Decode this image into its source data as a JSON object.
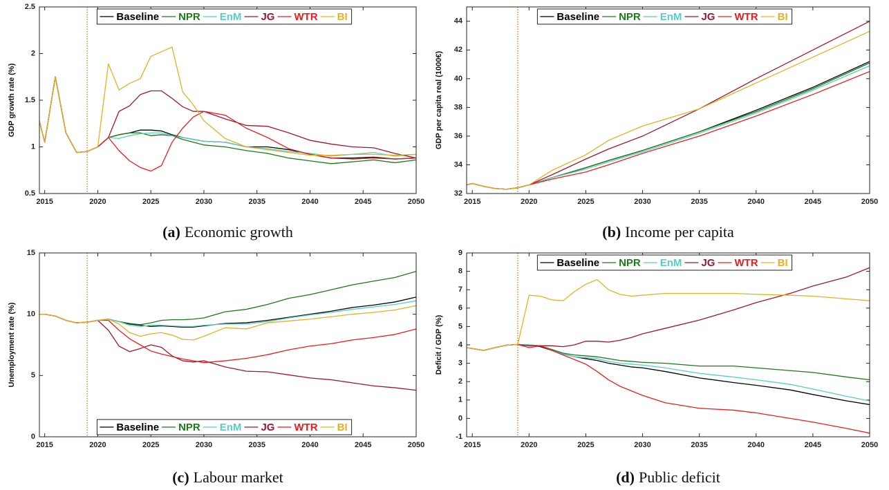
{
  "chart_data": [
    {
      "type": "line",
      "caption_label": "(a)",
      "caption": "Economic growth",
      "y_label": "GDP growth rate (%)",
      "x": [
        2014,
        2015,
        2016,
        2017,
        2018,
        2019,
        2020,
        2021,
        2022,
        2023,
        2024,
        2025,
        2026,
        2027,
        2028,
        2029,
        2030,
        2032,
        2034,
        2036,
        2038,
        2040,
        2042,
        2044,
        2046,
        2048,
        2050
      ],
      "xlim": [
        2014.5,
        2050
      ],
      "xticks": [
        2015,
        2020,
        2025,
        2030,
        2035,
        2040,
        2045,
        2050
      ],
      "ylim": [
        0.5,
        2.5
      ],
      "yticks": [
        0.5,
        1,
        1.5,
        2,
        2.5
      ],
      "vline": 2019,
      "vline_color": "#d2691e",
      "legend": "upper center",
      "series": [
        {
          "name": "Baseline",
          "color": "#000000",
          "values": [
            1.5,
            1.05,
            1.75,
            1.15,
            0.94,
            0.95,
            1.0,
            1.1,
            1.13,
            1.15,
            1.18,
            1.18,
            1.17,
            1.13,
            1.1,
            1.08,
            1.06,
            1.05,
            1.0,
            1.0,
            0.97,
            0.92,
            0.88,
            0.88,
            0.89,
            0.87,
            0.88
          ]
        },
        {
          "name": "NPR",
          "color": "#1a7a1a",
          "values": [
            1.5,
            1.05,
            1.75,
            1.15,
            0.94,
            0.95,
            1.0,
            1.1,
            1.13,
            1.15,
            1.15,
            1.12,
            1.13,
            1.12,
            1.08,
            1.05,
            1.02,
            1.0,
            0.96,
            0.93,
            0.88,
            0.85,
            0.82,
            0.84,
            0.86,
            0.83,
            0.86
          ]
        },
        {
          "name": "EnM",
          "color": "#55cfc3",
          "values": [
            1.5,
            1.05,
            1.75,
            1.15,
            0.94,
            0.95,
            1.0,
            1.1,
            1.09,
            1.12,
            1.14,
            1.15,
            1.15,
            1.12,
            1.1,
            1.08,
            1.06,
            1.05,
            1.0,
            0.98,
            0.95,
            0.93,
            0.9,
            0.92,
            0.94,
            0.9,
            0.92
          ]
        },
        {
          "name": "JG",
          "color": "#a01530",
          "values": [
            1.5,
            1.05,
            1.75,
            1.15,
            0.94,
            0.95,
            1.0,
            1.1,
            1.38,
            1.44,
            1.56,
            1.6,
            1.6,
            1.52,
            1.43,
            1.38,
            1.38,
            1.3,
            1.23,
            1.22,
            1.15,
            1.07,
            1.03,
            1.0,
            0.99,
            0.93,
            0.88
          ]
        },
        {
          "name": "WTR",
          "color": "#ee1c1c",
          "values": [
            1.5,
            1.05,
            1.75,
            1.15,
            0.94,
            0.95,
            1.0,
            1.1,
            0.96,
            0.85,
            0.78,
            0.74,
            0.8,
            1.05,
            1.2,
            1.32,
            1.38,
            1.34,
            1.2,
            1.1,
            0.98,
            0.92,
            0.88,
            0.87,
            0.88,
            0.87,
            0.88
          ]
        },
        {
          "name": "BI",
          "color": "#e6b022",
          "values": [
            1.5,
            1.05,
            1.75,
            1.15,
            0.94,
            0.95,
            1.0,
            1.89,
            1.61,
            1.68,
            1.73,
            1.97,
            2.02,
            2.07,
            1.59,
            1.45,
            1.28,
            1.09,
            1.0,
            0.97,
            0.94,
            0.91,
            0.91,
            0.92,
            0.92,
            0.91,
            0.92
          ]
        }
      ]
    },
    {
      "type": "line",
      "caption_label": "(b)",
      "caption": "Income per capita",
      "y_label": "GDP per capita real (1000€)",
      "x": [
        2014,
        2015,
        2016,
        2017,
        2018,
        2019,
        2020,
        2022,
        2025,
        2027,
        2030,
        2035,
        2040,
        2045,
        2050
      ],
      "xlim": [
        2014.5,
        2050
      ],
      "xticks": [
        2015,
        2020,
        2025,
        2030,
        2035,
        2040,
        2045,
        2050
      ],
      "ylim": [
        32,
        45
      ],
      "yticks": [
        32,
        34,
        36,
        38,
        40,
        42,
        44
      ],
      "vline": 2019,
      "vline_color": "#d2691e",
      "legend": "upper center",
      "series": [
        {
          "name": "Baseline",
          "color": "#000000",
          "values": [
            32.5,
            32.7,
            32.5,
            32.35,
            32.3,
            32.4,
            32.6,
            33.1,
            33.8,
            34.3,
            35.0,
            36.3,
            37.8,
            39.4,
            41.2
          ]
        },
        {
          "name": "NPR",
          "color": "#1a7a1a",
          "values": [
            32.5,
            32.7,
            32.5,
            32.35,
            32.3,
            32.4,
            32.6,
            33.1,
            33.8,
            34.3,
            35.0,
            36.3,
            37.7,
            39.3,
            41.1
          ]
        },
        {
          "name": "EnM",
          "color": "#55cfc3",
          "values": [
            32.5,
            32.7,
            32.5,
            32.35,
            32.3,
            32.4,
            32.6,
            33.1,
            33.7,
            34.2,
            34.9,
            36.2,
            37.6,
            39.2,
            40.9
          ]
        },
        {
          "name": "JG",
          "color": "#a01530",
          "values": [
            32.5,
            32.7,
            32.5,
            32.35,
            32.3,
            32.4,
            32.6,
            33.3,
            34.4,
            35.1,
            36.0,
            37.9,
            40.0,
            42.0,
            44.0
          ]
        },
        {
          "name": "WTR",
          "color": "#ee1c1c",
          "values": [
            32.5,
            32.7,
            32.5,
            32.35,
            32.3,
            32.4,
            32.6,
            33.0,
            33.5,
            34.0,
            34.8,
            36.0,
            37.4,
            38.9,
            40.5
          ]
        },
        {
          "name": "BI",
          "color": "#e6b022",
          "values": [
            32.5,
            32.7,
            32.5,
            32.35,
            32.3,
            32.4,
            32.6,
            33.6,
            34.7,
            35.7,
            36.7,
            37.9,
            39.7,
            41.5,
            43.3
          ]
        }
      ]
    },
    {
      "type": "line",
      "caption_label": "(c)",
      "caption": "Labour market",
      "y_label": "Unemployment rate (%)",
      "x": [
        2014,
        2015,
        2016,
        2017,
        2018,
        2019,
        2020,
        2021,
        2022,
        2023,
        2024,
        2025,
        2026,
        2027,
        2028,
        2029,
        2030,
        2032,
        2034,
        2036,
        2038,
        2040,
        2042,
        2044,
        2046,
        2048,
        2050
      ],
      "xlim": [
        2014.5,
        2050
      ],
      "xticks": [
        2015,
        2020,
        2025,
        2030,
        2035,
        2040,
        2045,
        2050
      ],
      "ylim": [
        0,
        15
      ],
      "yticks": [
        0,
        5,
        10,
        15
      ],
      "vline": 2019,
      "vline_color": "#d2691e",
      "legend": "lower center",
      "series": [
        {
          "name": "Baseline",
          "color": "#000000",
          "values": [
            10,
            10,
            9.85,
            9.5,
            9.3,
            9.35,
            9.5,
            9.6,
            9.4,
            9.2,
            9.1,
            9.0,
            9.05,
            9.0,
            8.95,
            8.95,
            9.05,
            9.25,
            9.3,
            9.5,
            9.75,
            10.0,
            10.25,
            10.55,
            10.75,
            11.0,
            11.4
          ]
        },
        {
          "name": "NPR",
          "color": "#1a7a1a",
          "values": [
            10,
            10,
            9.85,
            9.5,
            9.3,
            9.35,
            9.5,
            9.6,
            9.4,
            9.25,
            9.15,
            9.3,
            9.5,
            9.55,
            9.55,
            9.6,
            9.7,
            10.2,
            10.4,
            10.8,
            11.3,
            11.6,
            12.0,
            12.4,
            12.7,
            13.0,
            13.5
          ]
        },
        {
          "name": "EnM",
          "color": "#55cfc3",
          "values": [
            10,
            10,
            9.85,
            9.5,
            9.3,
            9.35,
            9.5,
            9.6,
            9.4,
            9.1,
            9.0,
            9.1,
            9.1,
            9.05,
            9.0,
            9.0,
            9.1,
            9.2,
            9.2,
            9.4,
            9.7,
            9.95,
            10.15,
            10.4,
            10.6,
            10.8,
            11.1
          ]
        },
        {
          "name": "JG",
          "color": "#a01530",
          "values": [
            10,
            10,
            9.85,
            9.5,
            9.3,
            9.35,
            9.5,
            8.7,
            7.4,
            6.95,
            7.2,
            7.5,
            7.3,
            6.6,
            6.2,
            6.1,
            6.2,
            5.7,
            5.35,
            5.3,
            5.05,
            4.8,
            4.65,
            4.4,
            4.15,
            4.0,
            3.8
          ]
        },
        {
          "name": "WTR",
          "color": "#ee1c1c",
          "values": [
            10,
            10,
            9.85,
            9.5,
            9.3,
            9.35,
            9.5,
            9.5,
            8.7,
            8.0,
            7.5,
            7.0,
            6.75,
            6.55,
            6.35,
            6.2,
            6.05,
            6.2,
            6.4,
            6.7,
            7.1,
            7.4,
            7.6,
            7.9,
            8.1,
            8.35,
            8.8
          ]
        },
        {
          "name": "BI",
          "color": "#e6b022",
          "values": [
            10,
            10,
            9.85,
            9.5,
            9.3,
            9.35,
            9.5,
            9.6,
            9.2,
            8.5,
            8.2,
            8.4,
            8.5,
            8.3,
            7.95,
            7.9,
            8.2,
            8.9,
            8.8,
            9.3,
            9.45,
            9.6,
            9.8,
            10.0,
            10.15,
            10.35,
            10.7
          ]
        }
      ]
    },
    {
      "type": "line",
      "caption_label": "(d)",
      "caption": "Public deficit",
      "y_label": "Deficit / GDP (%)",
      "x": [
        2014,
        2015,
        2016,
        2017,
        2018,
        2019,
        2020,
        2021,
        2022,
        2023,
        2024,
        2025,
        2026,
        2027,
        2028,
        2029,
        2030,
        2032,
        2035,
        2038,
        2040,
        2043,
        2045,
        2048,
        2050
      ],
      "xlim": [
        2014.5,
        2050
      ],
      "xticks": [
        2015,
        2020,
        2025,
        2030,
        2035,
        2040,
        2045,
        2050
      ],
      "ylim": [
        -1,
        9
      ],
      "yticks": [
        -1,
        0,
        1,
        2,
        3,
        4,
        5,
        6,
        7,
        8,
        9
      ],
      "vline": 2019,
      "vline_color": "#d2691e",
      "legend": "upper center",
      "series": [
        {
          "name": "Baseline",
          "color": "#000000",
          "values": [
            3.9,
            3.8,
            3.7,
            3.85,
            3.98,
            4.02,
            4.0,
            3.9,
            3.7,
            3.5,
            3.35,
            3.25,
            3.15,
            3.0,
            2.9,
            2.8,
            2.75,
            2.55,
            2.2,
            1.95,
            1.8,
            1.55,
            1.3,
            0.95,
            0.75
          ]
        },
        {
          "name": "NPR",
          "color": "#1a7a1a",
          "values": [
            3.9,
            3.8,
            3.7,
            3.85,
            3.98,
            4.02,
            4.0,
            3.95,
            3.75,
            3.55,
            3.45,
            3.4,
            3.35,
            3.25,
            3.15,
            3.1,
            3.05,
            3.0,
            2.85,
            2.85,
            2.75,
            2.6,
            2.5,
            2.25,
            2.1
          ]
        },
        {
          "name": "EnM",
          "color": "#55cfc3",
          "values": [
            3.9,
            3.8,
            3.7,
            3.85,
            3.98,
            4.02,
            4.0,
            3.95,
            3.7,
            3.5,
            3.35,
            3.3,
            3.25,
            3.1,
            3.0,
            2.95,
            2.9,
            2.75,
            2.45,
            2.25,
            2.1,
            1.85,
            1.6,
            1.2,
            0.95
          ]
        },
        {
          "name": "JG",
          "color": "#a01530",
          "values": [
            3.9,
            3.8,
            3.7,
            3.85,
            3.98,
            4.02,
            3.95,
            3.95,
            3.95,
            3.9,
            4.0,
            4.2,
            4.2,
            4.15,
            4.25,
            4.4,
            4.6,
            4.9,
            5.35,
            5.9,
            6.3,
            6.8,
            7.2,
            7.7,
            8.2
          ]
        },
        {
          "name": "WTR",
          "color": "#ee1c1c",
          "values": [
            3.9,
            3.8,
            3.7,
            3.85,
            3.98,
            4.02,
            3.85,
            3.95,
            3.7,
            3.45,
            3.2,
            2.95,
            2.55,
            2.1,
            1.75,
            1.5,
            1.25,
            0.85,
            0.55,
            0.45,
            0.3,
            0.0,
            -0.2,
            -0.55,
            -0.8
          ]
        },
        {
          "name": "BI",
          "color": "#e6b022",
          "values": [
            3.9,
            3.8,
            3.7,
            3.85,
            3.98,
            4.02,
            6.7,
            6.65,
            6.45,
            6.4,
            6.9,
            7.3,
            7.55,
            7.0,
            6.75,
            6.65,
            6.7,
            6.8,
            6.8,
            6.8,
            6.75,
            6.7,
            6.65,
            6.5,
            6.4
          ]
        }
      ]
    }
  ]
}
